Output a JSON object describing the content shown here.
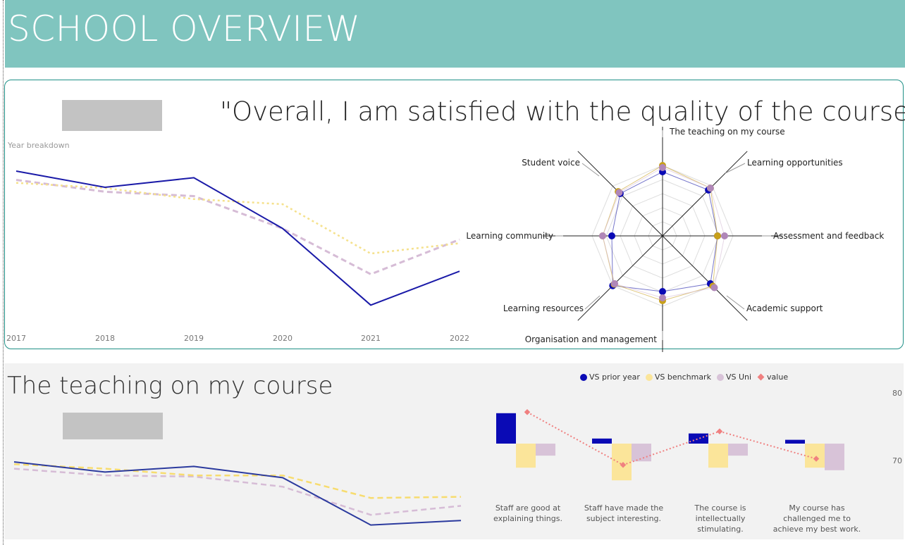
{
  "header": {
    "title": "SCHOOL OVERVIEW"
  },
  "overview": {
    "quote": "\"Overall, I am satisfied with the quality of the course\"",
    "year_breakdown_label": "Year breakdown",
    "years": [
      "2017",
      "2018",
      "2019",
      "2020",
      "2021",
      "2022"
    ],
    "series_colors": {
      "prior_year": "#1a1aa8",
      "benchmark": "#f5e18c",
      "uni": "#d6bcd6"
    },
    "radar_labels": [
      "The teaching on my course",
      "Learning opportunities",
      "Assessment and feedback",
      "Academic support",
      "Organisation and management",
      "Learning resources",
      "Learning community",
      "Student voice"
    ]
  },
  "teaching": {
    "title": "The teaching on my course",
    "legend": [
      "VS prior year",
      "VS benchmark",
      "VS Uni",
      "value"
    ],
    "legend_colors": [
      "#0a0ab5",
      "#fbe59a",
      "#d8c3d8",
      "#f08080"
    ],
    "axis_ticks": [
      "80",
      "70"
    ],
    "bar_labels": [
      "Staff are good at explaining things.",
      "Staff have made the subject interesting.",
      "The course is intellectually stimulating.",
      "My course has challenged me to achieve my best work."
    ]
  },
  "chart_data": [
    {
      "type": "line",
      "x": [
        "2017",
        "2018",
        "2019",
        "2020",
        "2021",
        "2022"
      ],
      "series": [
        {
          "values": [
            79.8,
            77.6,
            78.9,
            72.0,
            61.6,
            66.2
          ]
        },
        {
          "values": [
            78.2,
            77.5,
            76.0,
            75.3,
            68.6,
            70.0
          ]
        },
        {
          "values": [
            78.6,
            77.0,
            76.4,
            72.0,
            65.8,
            70.5
          ]
        }
      ]
    },
    {
      "type": "radar",
      "categories": [
        "The teaching on my course",
        "Learning opportunities",
        "Assessment and feedback",
        "Academic support",
        "Organisation and management",
        "Learning resources",
        "Learning community",
        "Student voice"
      ],
      "series": [
        {
          "values": [
            0.91,
            0.92,
            0.78,
            0.96,
            0.79,
            1.0,
            0.72,
            0.85
          ]
        },
        {
          "values": [
            1.0,
            0.96,
            0.78,
            1.01,
            0.92,
            0.97,
            0.85,
            0.89
          ]
        },
        {
          "values": [
            0.97,
            0.96,
            0.88,
            1.04,
            0.88,
            0.96,
            0.85,
            0.87
          ]
        }
      ]
    },
    {
      "type": "line",
      "x": [
        "2017",
        "2018",
        "2019",
        "2020",
        "2021",
        "2022"
      ],
      "series": [
        {
          "values": [
            76.0,
            75.1,
            75.6,
            74.6,
            70.4,
            70.8
          ]
        },
        {
          "values": [
            75.8,
            75.4,
            74.8,
            74.8,
            72.8,
            72.9
          ]
        },
        {
          "values": [
            75.4,
            74.8,
            74.7,
            73.8,
            71.3,
            72.1
          ]
        }
      ]
    },
    {
      "type": "bar",
      "categories": [
        "Staff are good at explaining things.",
        "Staff have made the subject interesting.",
        "The course is intellectually stimulating.",
        "My course has challenged me to achieve my best work."
      ],
      "series": [
        {
          "name": "VS prior year",
          "values": [
            4.8,
            0.8,
            1.6,
            0.6
          ]
        },
        {
          "name": "VS benchmark",
          "values": [
            -3.8,
            -5.8,
            -3.8,
            -3.8
          ]
        },
        {
          "name": "VS Uni",
          "values": [
            -1.9,
            -2.8,
            -1.9,
            -4.2
          ]
        },
        {
          "name": "value",
          "values": [
            78.0,
            69.5,
            74.9,
            70.5
          ]
        }
      ],
      "ylim": [
        65,
        82
      ]
    }
  ]
}
